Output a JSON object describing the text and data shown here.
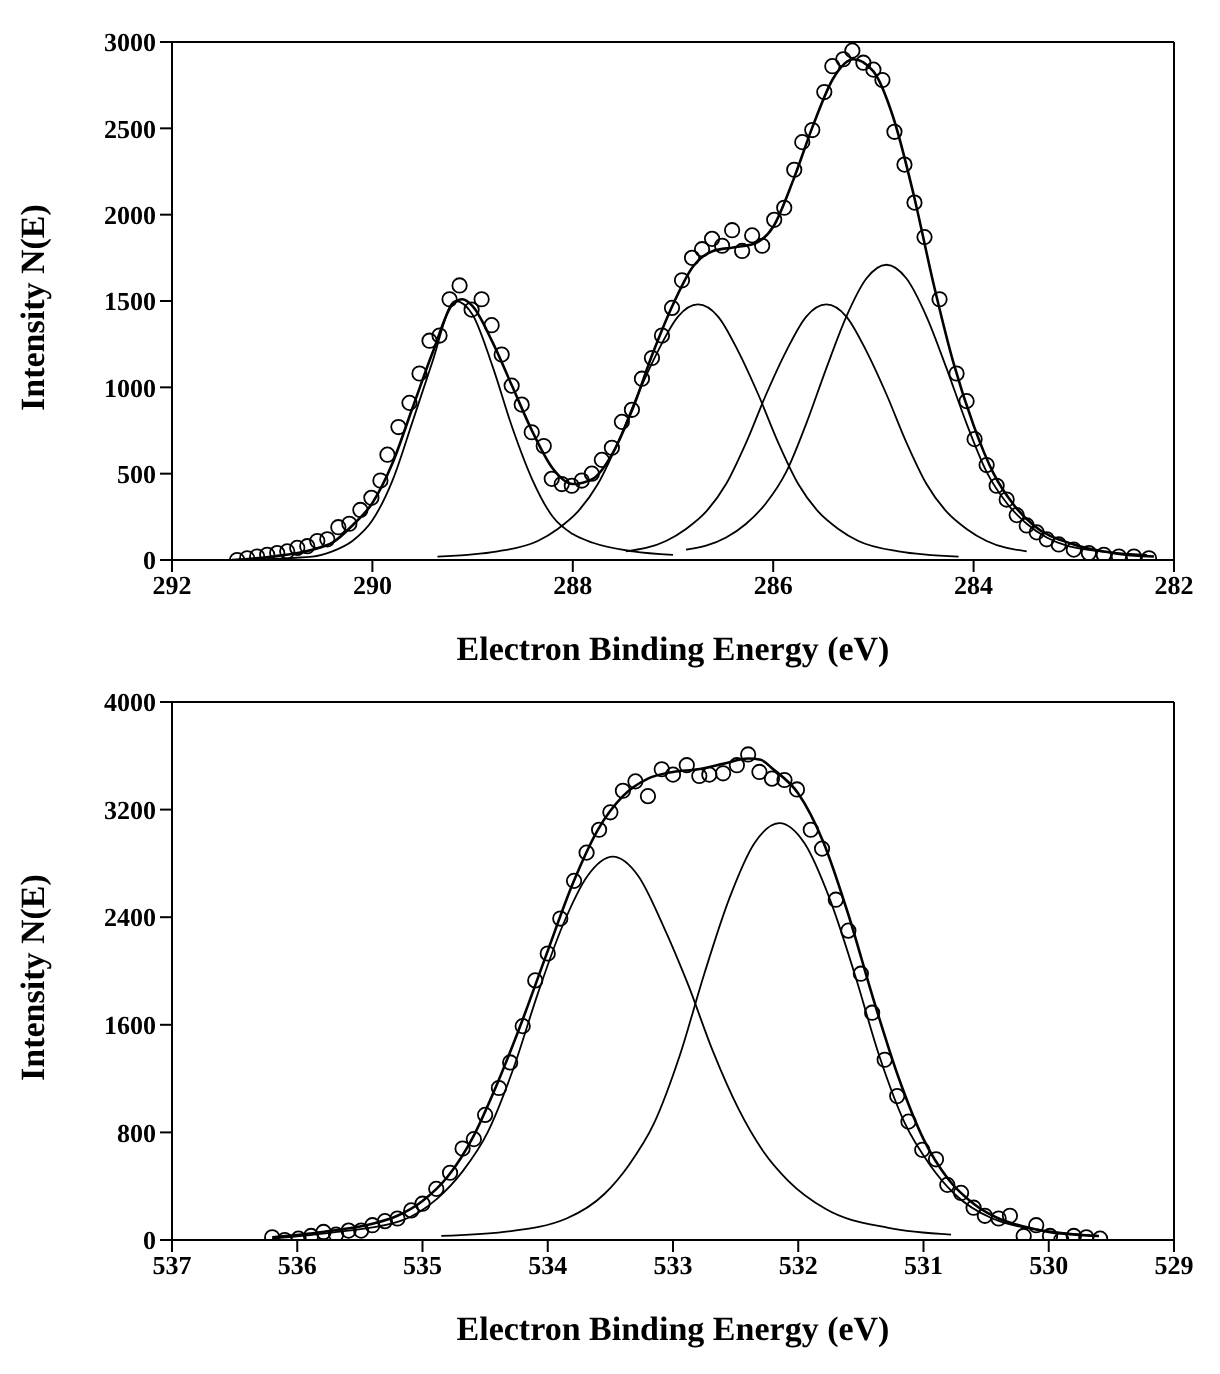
{
  "chart_data": [
    {
      "type": "line",
      "xlabel": "Electron Binding Energy (eV)",
      "ylabel": "Intensity N(E)",
      "xlim": [
        292,
        282
      ],
      "xticks": [
        292,
        290,
        288,
        286,
        284,
        282
      ],
      "ylim": [
        0,
        3000
      ],
      "yticks": [
        0,
        500,
        1000,
        1500,
        2000,
        2500,
        3000
      ],
      "series": [
        {
          "type": "scatter",
          "marker": "circle",
          "color": "#000000",
          "x": [
            291.35,
            291.25,
            291.15,
            291.05,
            290.95,
            290.85,
            290.75,
            290.65,
            290.55,
            290.45,
            290.34,
            290.23,
            290.12,
            290.01,
            289.92,
            289.85,
            289.74,
            289.63,
            289.53,
            289.43,
            289.33,
            289.23,
            289.13,
            289.01,
            288.91,
            288.81,
            288.71,
            288.61,
            288.51,
            288.41,
            288.29,
            288.21,
            288.11,
            288.01,
            287.91,
            287.81,
            287.71,
            287.61,
            287.51,
            287.41,
            287.31,
            287.21,
            287.11,
            287.01,
            286.91,
            286.81,
            286.71,
            286.61,
            286.51,
            286.41,
            286.31,
            286.21,
            286.11,
            285.99,
            285.89,
            285.79,
            285.71,
            285.61,
            285.49,
            285.41,
            285.3,
            285.21,
            285.1,
            285.0,
            284.91,
            284.79,
            284.69,
            284.59,
            284.49,
            284.34,
            284.17,
            284.07,
            283.99,
            283.87,
            283.77,
            283.67,
            283.57,
            283.47,
            283.37,
            283.27,
            283.15,
            283.0,
            282.85,
            282.7,
            282.55,
            282.4,
            282.25
          ],
          "values": [
            0,
            10,
            20,
            30,
            40,
            50,
            70,
            80,
            110,
            120,
            190,
            210,
            290,
            360,
            460,
            610,
            770,
            910,
            1080,
            1270,
            1300,
            1510,
            1590,
            1450,
            1510,
            1360,
            1190,
            1010,
            900,
            740,
            660,
            470,
            440,
            430,
            460,
            500,
            580,
            650,
            800,
            870,
            1050,
            1170,
            1300,
            1460,
            1620,
            1750,
            1800,
            1860,
            1820,
            1910,
            1790,
            1880,
            1820,
            1970,
            2040,
            2260,
            2420,
            2490,
            2710,
            2860,
            2900,
            2950,
            2880,
            2840,
            2780,
            2480,
            2290,
            2070,
            1870,
            1510,
            1080,
            920,
            700,
            550,
            430,
            350,
            260,
            200,
            160,
            120,
            90,
            60,
            40,
            30,
            20,
            20,
            10
          ]
        },
        {
          "color": "#000000",
          "x": [
            291.4,
            291.0,
            290.6,
            290.4,
            290.2,
            290.0,
            289.8,
            289.6,
            289.4,
            289.2,
            289.1,
            289.0,
            288.8,
            288.6,
            288.4,
            288.2,
            288.0,
            287.8,
            287.6,
            287.4,
            287.2,
            287.0,
            286.8,
            286.6,
            286.4,
            286.2,
            286.0,
            285.8,
            285.6,
            285.4,
            285.2,
            285.0,
            284.8,
            284.6,
            284.4,
            284.2,
            284.0,
            283.8,
            283.6,
            283.4,
            283.0,
            282.6,
            282.2
          ],
          "values": [
            0,
            20,
            60,
            100,
            200,
            330,
            560,
            880,
            1200,
            1480,
            1510,
            1470,
            1260,
            1000,
            740,
            530,
            440,
            470,
            620,
            880,
            1200,
            1480,
            1700,
            1790,
            1810,
            1830,
            1930,
            2200,
            2520,
            2790,
            2900,
            2830,
            2560,
            2120,
            1600,
            1140,
            780,
            500,
            320,
            200,
            90,
            40,
            20
          ]
        },
        {
          "color": "#000000",
          "x": [
            291.4,
            290.6,
            290.4,
            290.2,
            290.0,
            289.8,
            289.6,
            289.4,
            289.2,
            289.17,
            289.0,
            288.8,
            288.6,
            288.4,
            288.2,
            288.0,
            287.8,
            287.4,
            287.0
          ],
          "values": [
            0,
            20,
            50,
            110,
            230,
            460,
            800,
            1150,
            1490,
            1500,
            1420,
            1120,
            760,
            460,
            250,
            150,
            100,
            50,
            30
          ]
        },
        {
          "color": "#000000",
          "x": [
            289.35,
            288.75,
            288.35,
            288.15,
            287.95,
            287.75,
            287.55,
            287.35,
            287.15,
            286.95,
            286.75,
            286.55,
            286.35,
            286.15,
            285.95,
            285.75,
            285.55,
            285.35,
            285.15,
            284.75,
            284.15
          ],
          "values": [
            20,
            50,
            110,
            180,
            280,
            440,
            680,
            960,
            1210,
            1410,
            1480,
            1410,
            1210,
            960,
            680,
            440,
            280,
            180,
            110,
            50,
            20
          ]
        },
        {
          "color": "#000000",
          "x": [
            287.47,
            287.07,
            286.87,
            286.67,
            286.47,
            286.27,
            286.07,
            285.87,
            285.67,
            285.47,
            285.27,
            285.07,
            284.87,
            284.67,
            284.47,
            284.27,
            284.07,
            283.87,
            283.47
          ],
          "values": [
            50,
            110,
            180,
            280,
            440,
            680,
            960,
            1210,
            1410,
            1480,
            1410,
            1210,
            960,
            680,
            440,
            280,
            180,
            110,
            50
          ]
        },
        {
          "color": "#000000",
          "x": [
            286.87,
            286.47,
            286.27,
            286.07,
            285.87,
            285.67,
            285.47,
            285.27,
            285.07,
            284.87,
            284.67,
            284.47,
            284.27,
            284.07,
            283.87,
            283.67,
            283.47,
            283.27,
            282.87,
            282.27
          ],
          "values": [
            60,
            130,
            210,
            330,
            510,
            790,
            1110,
            1410,
            1630,
            1710,
            1630,
            1410,
            1110,
            790,
            510,
            330,
            210,
            130,
            60,
            30
          ]
        }
      ]
    },
    {
      "type": "line",
      "xlabel": "Electron Binding Energy (eV)",
      "ylabel": "Intensity N(E)",
      "xlim": [
        537,
        529
      ],
      "xticks": [
        537,
        536,
        535,
        534,
        533,
        532,
        531,
        530,
        529
      ],
      "ylim": [
        0,
        4000
      ],
      "yticks": [
        0,
        800,
        1600,
        2400,
        3200,
        4000
      ],
      "series": [
        {
          "type": "scatter",
          "marker": "circle",
          "color": "#000000",
          "x": [
            536.2,
            536.1,
            535.99,
            535.89,
            535.79,
            535.69,
            535.59,
            535.49,
            535.4,
            535.3,
            535.2,
            535.09,
            535.0,
            534.89,
            534.78,
            534.68,
            534.59,
            534.5,
            534.39,
            534.3,
            534.2,
            534.1,
            534.0,
            533.9,
            533.79,
            533.69,
            533.59,
            533.5,
            533.4,
            533.3,
            533.2,
            533.09,
            533.0,
            532.89,
            532.79,
            532.71,
            532.6,
            532.49,
            532.4,
            532.31,
            532.21,
            532.11,
            532.01,
            531.9,
            531.81,
            531.7,
            531.6,
            531.5,
            531.41,
            531.31,
            531.21,
            531.12,
            531.01,
            530.9,
            530.81,
            530.7,
            530.6,
            530.51,
            530.4,
            530.31,
            530.2,
            530.1,
            529.99,
            529.9,
            529.8,
            529.7,
            529.59
          ],
          "values": [
            20,
            0,
            10,
            30,
            60,
            40,
            70,
            70,
            110,
            140,
            160,
            220,
            270,
            380,
            500,
            680,
            750,
            930,
            1130,
            1320,
            1590,
            1930,
            2130,
            2390,
            2670,
            2880,
            3050,
            3180,
            3340,
            3410,
            3300,
            3500,
            3460,
            3530,
            3450,
            3460,
            3470,
            3530,
            3610,
            3480,
            3430,
            3420,
            3350,
            3050,
            2910,
            2530,
            2300,
            1980,
            1690,
            1340,
            1070,
            880,
            670,
            600,
            410,
            350,
            240,
            180,
            160,
            180,
            30,
            110,
            30,
            0,
            30,
            20,
            10
          ]
        },
        {
          "color": "#000000",
          "x": [
            536.2,
            535.8,
            535.4,
            535.2,
            535.0,
            534.8,
            534.6,
            534.4,
            534.2,
            534.0,
            533.8,
            533.6,
            533.4,
            533.2,
            533.0,
            532.8,
            532.6,
            532.4,
            532.3,
            532.2,
            532.0,
            531.8,
            531.6,
            531.4,
            531.2,
            531.0,
            530.8,
            530.6,
            530.4,
            530.2,
            530.0,
            529.6
          ],
          "values": [
            20,
            60,
            120,
            180,
            290,
            470,
            760,
            1170,
            1640,
            2150,
            2650,
            3050,
            3300,
            3430,
            3480,
            3500,
            3540,
            3580,
            3570,
            3500,
            3320,
            2960,
            2420,
            1790,
            1210,
            750,
            450,
            270,
            160,
            100,
            60,
            30
          ]
        },
        {
          "color": "#000000",
          "x": [
            536.2,
            535.68,
            535.18,
            534.88,
            534.68,
            534.48,
            534.28,
            534.08,
            533.88,
            533.68,
            533.48,
            533.28,
            533.08,
            532.88,
            532.68,
            532.48,
            532.28,
            532.08,
            531.78,
            531.28,
            530.78
          ],
          "values": [
            10,
            60,
            140,
            310,
            510,
            800,
            1260,
            1830,
            2340,
            2710,
            2850,
            2710,
            2340,
            1900,
            1400,
            980,
            660,
            440,
            230,
            90,
            40
          ]
        },
        {
          "color": "#000000",
          "x": [
            534.85,
            534.35,
            533.85,
            533.55,
            533.35,
            533.15,
            532.95,
            532.75,
            532.55,
            532.35,
            532.15,
            531.95,
            531.75,
            531.55,
            531.35,
            531.15,
            530.95,
            530.75,
            530.45,
            529.95,
            529.6
          ],
          "values": [
            30,
            60,
            160,
            340,
            560,
            870,
            1360,
            1980,
            2540,
            2950,
            3100,
            2950,
            2540,
            1980,
            1360,
            870,
            560,
            340,
            160,
            60,
            30
          ]
        }
      ]
    }
  ]
}
